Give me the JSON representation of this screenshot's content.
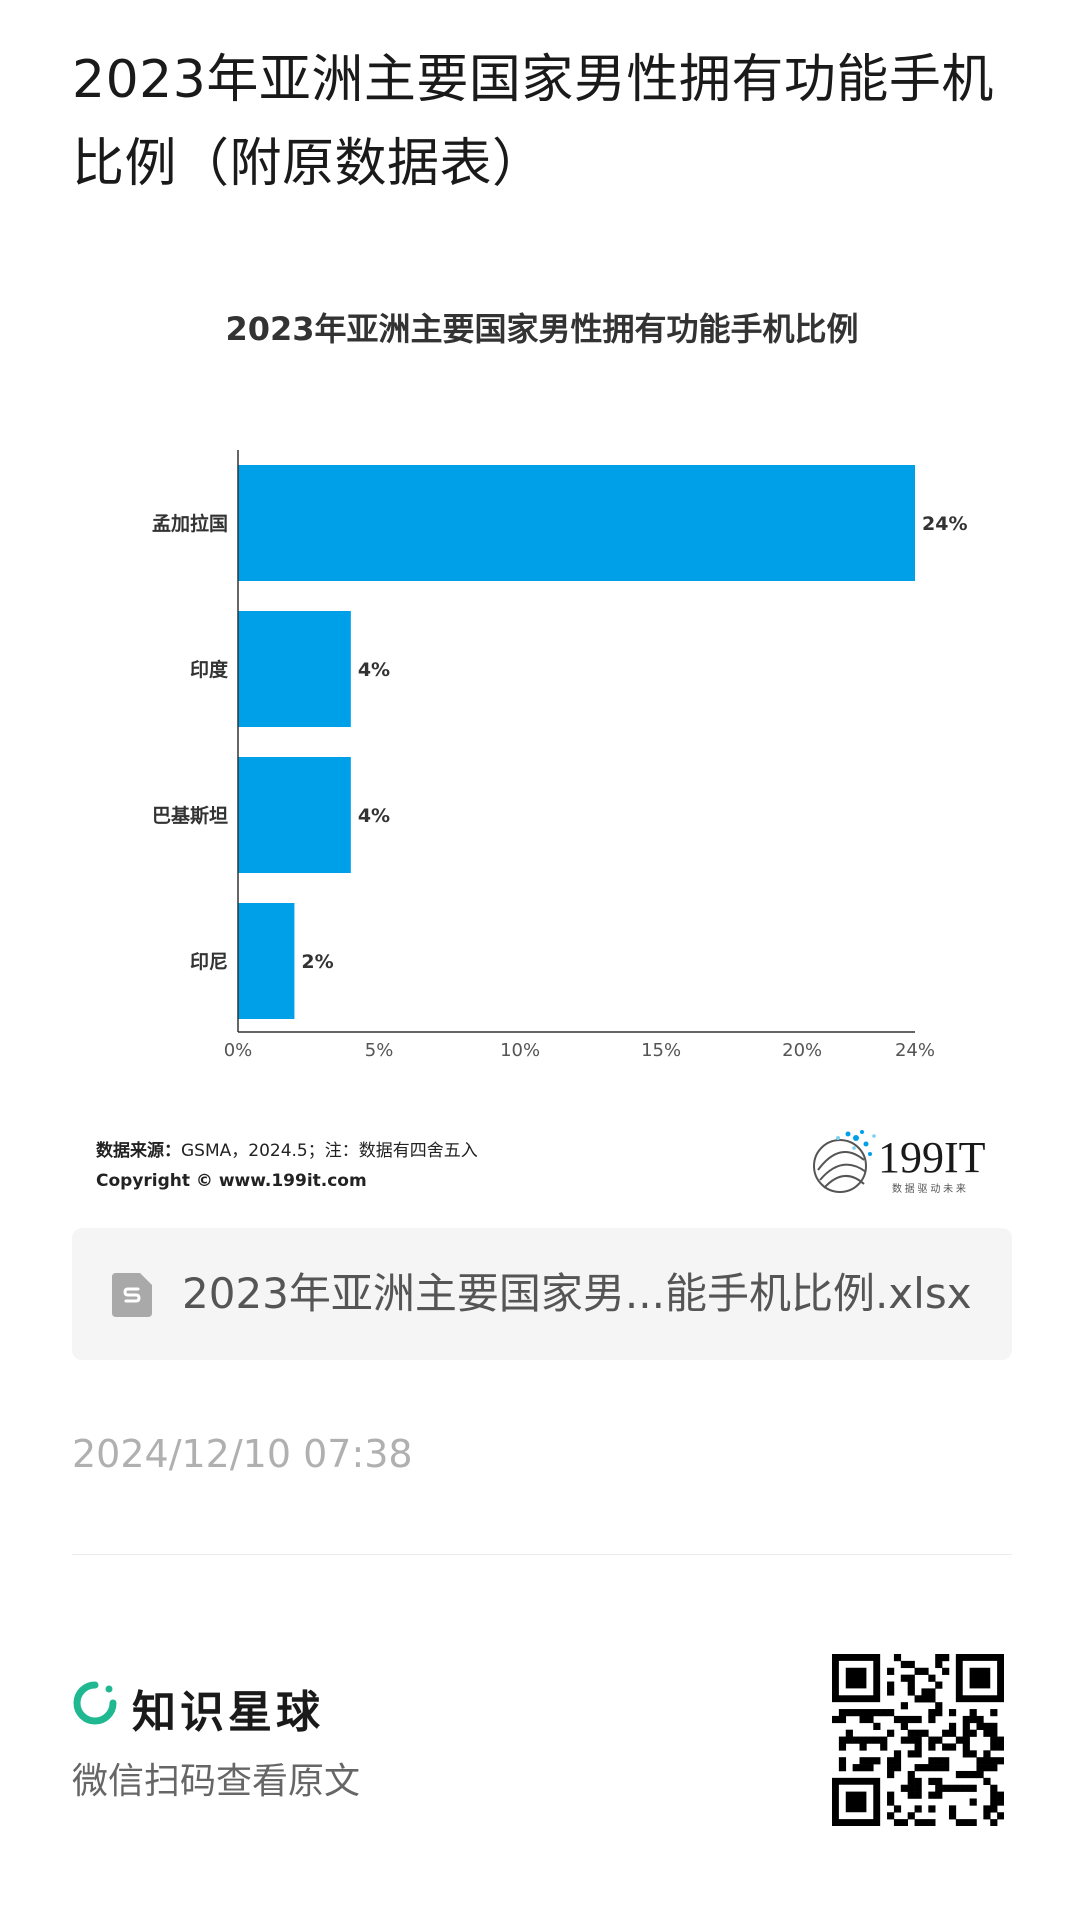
{
  "page": {
    "title": "2023年亚洲主要国家男性拥有功能手机比例（附原数据表）"
  },
  "chart_data": {
    "type": "bar",
    "orientation": "horizontal",
    "title": "2023年亚洲主要国家男性拥有功能手机比例",
    "categories": [
      "孟加拉国",
      "印度",
      "巴基斯坦",
      "印尼"
    ],
    "values": [
      24,
      4,
      4,
      2
    ],
    "value_labels": [
      "24%",
      "4%",
      "4%",
      "2%"
    ],
    "xticks": [
      "0%",
      "5%",
      "10%",
      "15%",
      "20%",
      "24%"
    ],
    "xtick_values": [
      0,
      5,
      10,
      15,
      20,
      24
    ],
    "xlim": [
      0,
      24
    ],
    "grid": false,
    "bar_color": "#00a0e9"
  },
  "source": {
    "label": "数据来源：",
    "text": "GSMA，2024.5；注：数据有四舍五入",
    "copyright": "Copyright ©  www.199it.com"
  },
  "brand": {
    "name": "199IT",
    "tagline": "数 据 驱 动 未 来",
    "color": "#1a1a1a",
    "accent": "#00a0e9"
  },
  "file": {
    "icon": "spreadsheet-file-icon",
    "name": "2023年亚洲主要国家男...能手机比例.xlsx"
  },
  "meta": {
    "timestamp": "2024/12/10 07:38"
  },
  "footer": {
    "planet_name": "知识星球",
    "planet_subtitle": "微信扫码查看原文",
    "logo_icon": "planet-logo-icon",
    "logo_color": "#1fb890"
  }
}
